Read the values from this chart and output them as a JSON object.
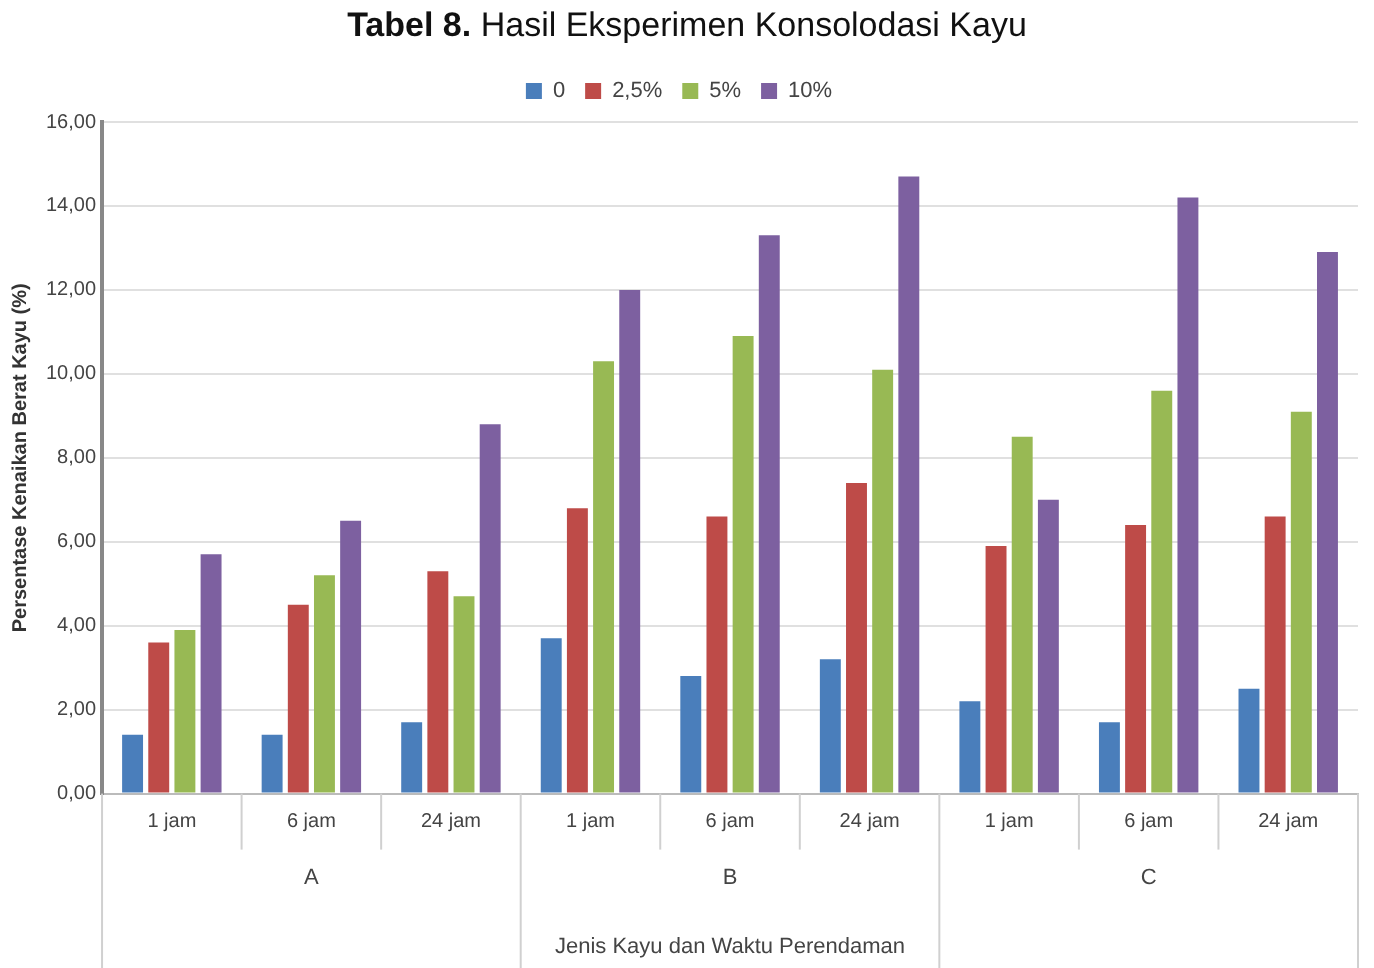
{
  "chart_data": {
    "type": "bar",
    "title": "Tabel 8. Hasil Eksperimen Konsolodasi Kayu",
    "xlabel": "Jenis Kayu dan Waktu Perendaman",
    "ylabel": "Persentase Kenaikan Berat Kayu (%)",
    "categories": [
      "1 jam",
      "6 jam",
      "24 jam",
      "1 jam",
      "6 jam",
      "24 jam",
      "1 jam",
      "6 jam",
      "24 jam"
    ],
    "annotations": [
      "A",
      "B",
      "C"
    ],
    "series": [
      {
        "name": "0",
        "color": "#4a7ebb",
        "values": [
          1.4,
          1.4,
          1.7,
          3.7,
          2.8,
          3.2,
          2.2,
          1.7,
          2.5
        ]
      },
      {
        "name": "2,5%",
        "color": "#be4b48",
        "values": [
          3.6,
          4.5,
          5.3,
          6.8,
          6.6,
          7.4,
          5.9,
          6.4,
          6.6
        ]
      },
      {
        "name": "5%",
        "color": "#98b954",
        "values": [
          3.9,
          5.2,
          4.7,
          10.3,
          10.9,
          10.1,
          8.5,
          9.6,
          9.1
        ]
      },
      {
        "name": "10%",
        "color": "#7d60a0",
        "values": [
          5.7,
          6.5,
          8.8,
          12.0,
          13.3,
          14.7,
          7.0,
          14.2,
          12.9
        ]
      }
    ],
    "ylim": [
      0,
      16
    ],
    "yticks": [
      {
        "value": 0,
        "label": "0,00"
      },
      {
        "value": 2,
        "label": "2,00"
      },
      {
        "value": 4,
        "label": "4,00"
      },
      {
        "value": 6,
        "label": "6,00"
      },
      {
        "value": 8,
        "label": "8,00"
      },
      {
        "value": 10,
        "label": "10,00"
      },
      {
        "value": 12,
        "label": "12,00"
      },
      {
        "value": 14,
        "label": "14,00"
      },
      {
        "value": 16,
        "label": "16,00"
      }
    ],
    "grid": "y",
    "legend": "top"
  }
}
